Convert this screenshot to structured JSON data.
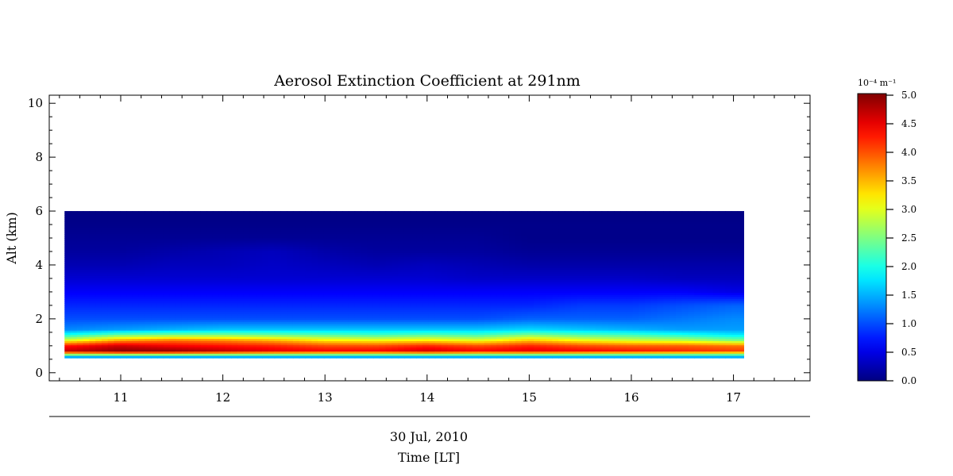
{
  "chart_data": {
    "type": "heatmap",
    "title": "Aerosol Extinction Coefficient at 291nm",
    "ylabel": "Alt (km)",
    "xlabel_date": "30 Jul, 2010",
    "xlabel": "Time [LT]",
    "xlim": [
      10.3,
      17.75
    ],
    "ylim": [
      -0.3,
      10.3
    ],
    "x_ticks": [
      {
        "value": 11,
        "label": "11"
      },
      {
        "value": 12,
        "label": "12"
      },
      {
        "value": 13,
        "label": "13"
      },
      {
        "value": 14,
        "label": "14"
      },
      {
        "value": 15,
        "label": "15"
      },
      {
        "value": 16,
        "label": "16"
      },
      {
        "value": 17,
        "label": "17"
      }
    ],
    "y_ticks": [
      {
        "value": 0,
        "label": "0"
      },
      {
        "value": 2,
        "label": "2"
      },
      {
        "value": 4,
        "label": "4"
      },
      {
        "value": 6,
        "label": "6"
      },
      {
        "value": 8,
        "label": "8"
      },
      {
        "value": 10,
        "label": "10"
      }
    ],
    "data_extent": {
      "x": [
        10.45,
        17.1
      ],
      "y": [
        0.55,
        6.0
      ]
    },
    "x": [
      10.5,
      11.0,
      11.5,
      12.0,
      12.5,
      13.0,
      13.5,
      14.0,
      14.5,
      15.0,
      15.5,
      16.0,
      16.5,
      17.0
    ],
    "y": [
      0.6,
      0.8,
      1.0,
      1.2,
      1.4,
      1.6,
      2.0,
      2.5,
      3.0,
      3.5,
      4.0,
      4.5,
      5.0,
      5.5,
      6.0
    ],
    "z": [
      [
        1.5,
        1.5,
        1.5,
        1.5,
        1.5,
        1.5,
        1.5,
        1.5,
        1.5,
        1.5,
        1.5,
        1.5,
        1.5,
        1.5
      ],
      [
        4.7,
        4.95,
        4.9,
        4.7,
        4.5,
        4.4,
        4.4,
        4.6,
        4.4,
        4.5,
        4.4,
        4.3,
        4.2,
        4.1
      ],
      [
        4.3,
        4.6,
        4.4,
        4.3,
        4.2,
        4.0,
        4.0,
        4.2,
        4.0,
        4.2,
        4.0,
        3.9,
        3.9,
        3.8
      ],
      [
        3.0,
        3.6,
        3.8,
        3.7,
        3.5,
        3.2,
        3.1,
        3.2,
        3.0,
        3.4,
        3.1,
        2.9,
        2.8,
        2.5
      ],
      [
        2.0,
        2.4,
        2.5,
        2.5,
        2.4,
        2.3,
        2.2,
        2.3,
        2.2,
        2.5,
        2.3,
        2.2,
        2.0,
        1.8
      ],
      [
        1.3,
        1.4,
        1.5,
        1.6,
        1.6,
        1.6,
        1.6,
        1.6,
        1.6,
        1.7,
        1.6,
        1.5,
        1.4,
        1.4
      ],
      [
        1.0,
        1.0,
        1.0,
        1.0,
        1.0,
        1.0,
        1.0,
        1.0,
        1.0,
        1.1,
        1.1,
        1.1,
        1.2,
        1.3
      ],
      [
        0.8,
        0.8,
        0.8,
        0.8,
        0.8,
        0.8,
        0.8,
        0.8,
        0.8,
        0.8,
        0.9,
        0.9,
        1.0,
        1.1
      ],
      [
        0.6,
        0.6,
        0.6,
        0.6,
        0.6,
        0.6,
        0.6,
        0.6,
        0.6,
        0.6,
        0.6,
        0.6,
        0.6,
        0.5
      ],
      [
        0.4,
        0.4,
        0.4,
        0.4,
        0.4,
        0.4,
        0.4,
        0.4,
        0.35,
        0.35,
        0.35,
        0.35,
        0.3,
        0.3
      ],
      [
        0.25,
        0.25,
        0.3,
        0.3,
        0.35,
        0.3,
        0.25,
        0.3,
        0.25,
        0.2,
        0.2,
        0.2,
        0.2,
        0.2
      ],
      [
        0.15,
        0.15,
        0.2,
        0.25,
        0.3,
        0.2,
        0.15,
        0.15,
        0.15,
        0.1,
        0.1,
        0.1,
        0.1,
        0.1
      ],
      [
        0.1,
        0.1,
        0.1,
        0.1,
        0.1,
        0.1,
        0.1,
        0.1,
        0.1,
        0.05,
        0.05,
        0.05,
        0.05,
        0.05
      ],
      [
        0.05,
        0.05,
        0.05,
        0.05,
        0.05,
        0.05,
        0.05,
        0.05,
        0.05,
        0.05,
        0.05,
        0.05,
        0.05,
        0.05
      ],
      [
        0.02,
        0.02,
        0.02,
        0.02,
        0.02,
        0.02,
        0.02,
        0.02,
        0.02,
        0.02,
        0.02,
        0.02,
        0.02,
        0.02
      ]
    ],
    "colorbar": {
      "unit_label": "10⁻⁴ m⁻¹",
      "range": [
        0.0,
        5.0
      ],
      "ticks": [
        "0.0",
        "0.5",
        "1.0",
        "1.5",
        "2.0",
        "2.5",
        "3.0",
        "3.5",
        "4.0",
        "4.5",
        "5.0"
      ],
      "colormap": "jet"
    },
    "grid": false
  }
}
